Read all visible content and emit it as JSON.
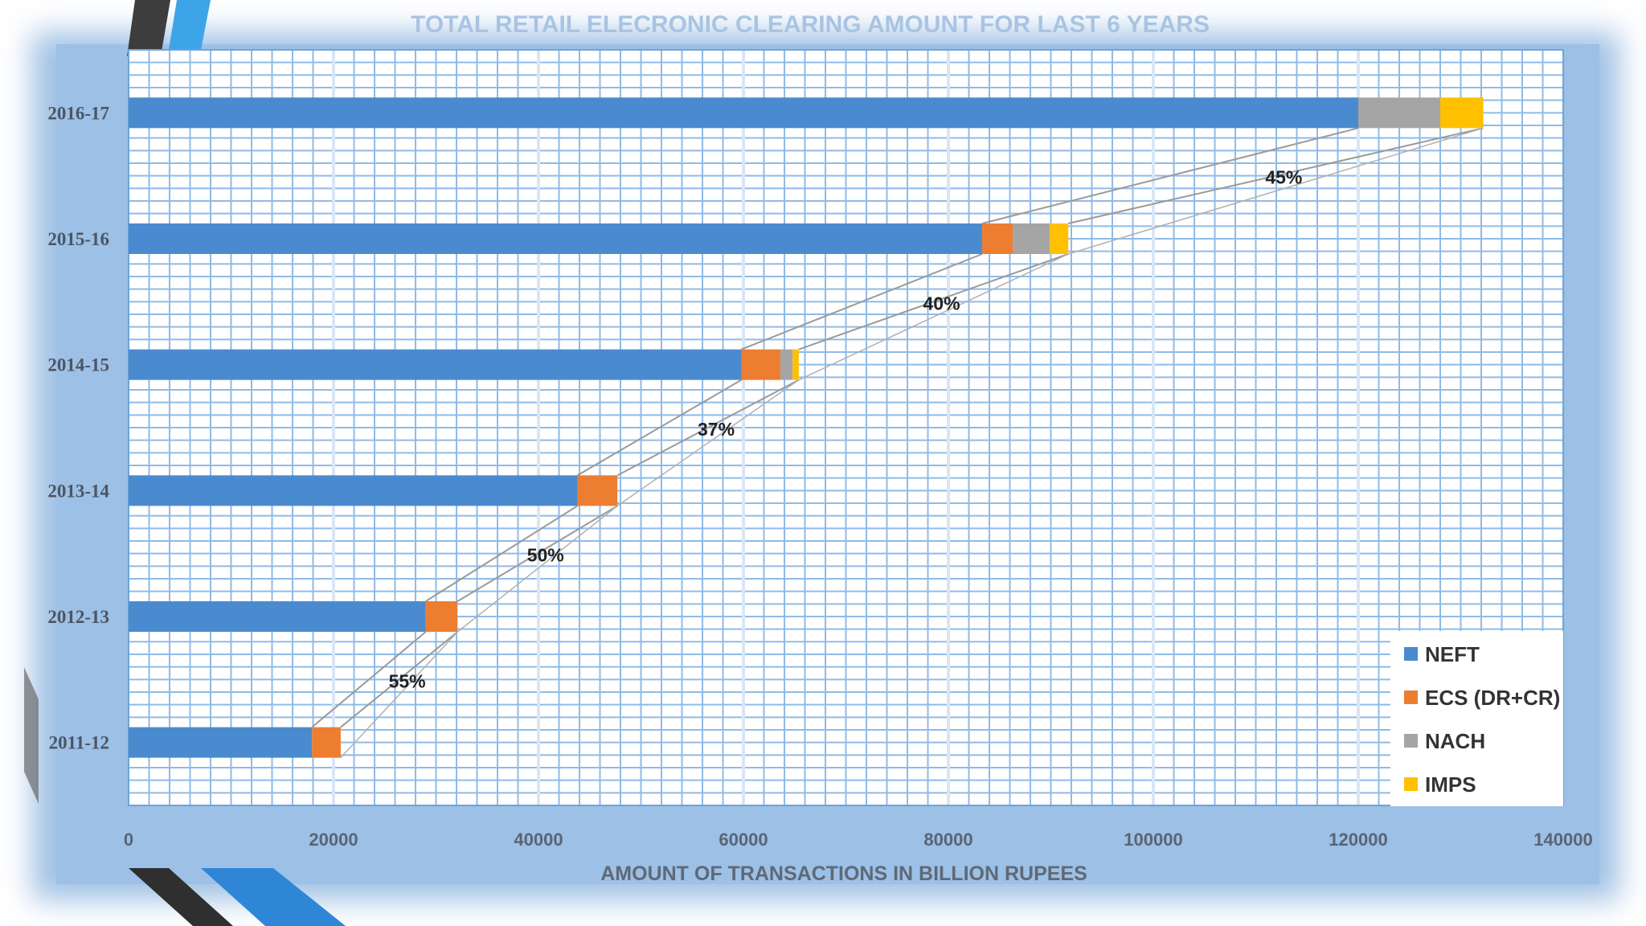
{
  "chart_data": {
    "type": "bar",
    "orientation": "horizontal",
    "stacked": true,
    "title": "TOTAL RETAIL ELECRONIC CLEARING AMOUNT FOR LAST 6 YEARS",
    "xlabel": "AMOUNT OF TRANSACTIONS IN BILLION RUPEES",
    "ylabel": "",
    "xlim": [
      0,
      140000
    ],
    "x_ticks": [
      "0",
      "20000",
      "40000",
      "60000",
      "80000",
      "100000",
      "120000",
      "140000"
    ],
    "categories": [
      "2011-12",
      "2012-13",
      "2013-14",
      "2014-15",
      "2015-16",
      "2016-17"
    ],
    "series": [
      {
        "name": "NEFT",
        "color": "#4a8bd0",
        "values": [
          17900,
          29000,
          43800,
          59800,
          83300,
          120000
        ]
      },
      {
        "name": "ECS (DR+CR)",
        "color": "#ed7d31",
        "values": [
          2800,
          3100,
          3900,
          3800,
          3000,
          0
        ]
      },
      {
        "name": "NACH",
        "color": "#a5a5a5",
        "values": [
          0,
          0,
          0,
          1200,
          3600,
          8000
        ]
      },
      {
        "name": "IMPS",
        "color": "#ffc000",
        "values": [
          0,
          0,
          0,
          600,
          1800,
          4200
        ]
      }
    ],
    "growth_labels": [
      "55%",
      "50%",
      "37%",
      "40%",
      "45%"
    ],
    "grid": true,
    "legend_position": "bottom-right"
  }
}
